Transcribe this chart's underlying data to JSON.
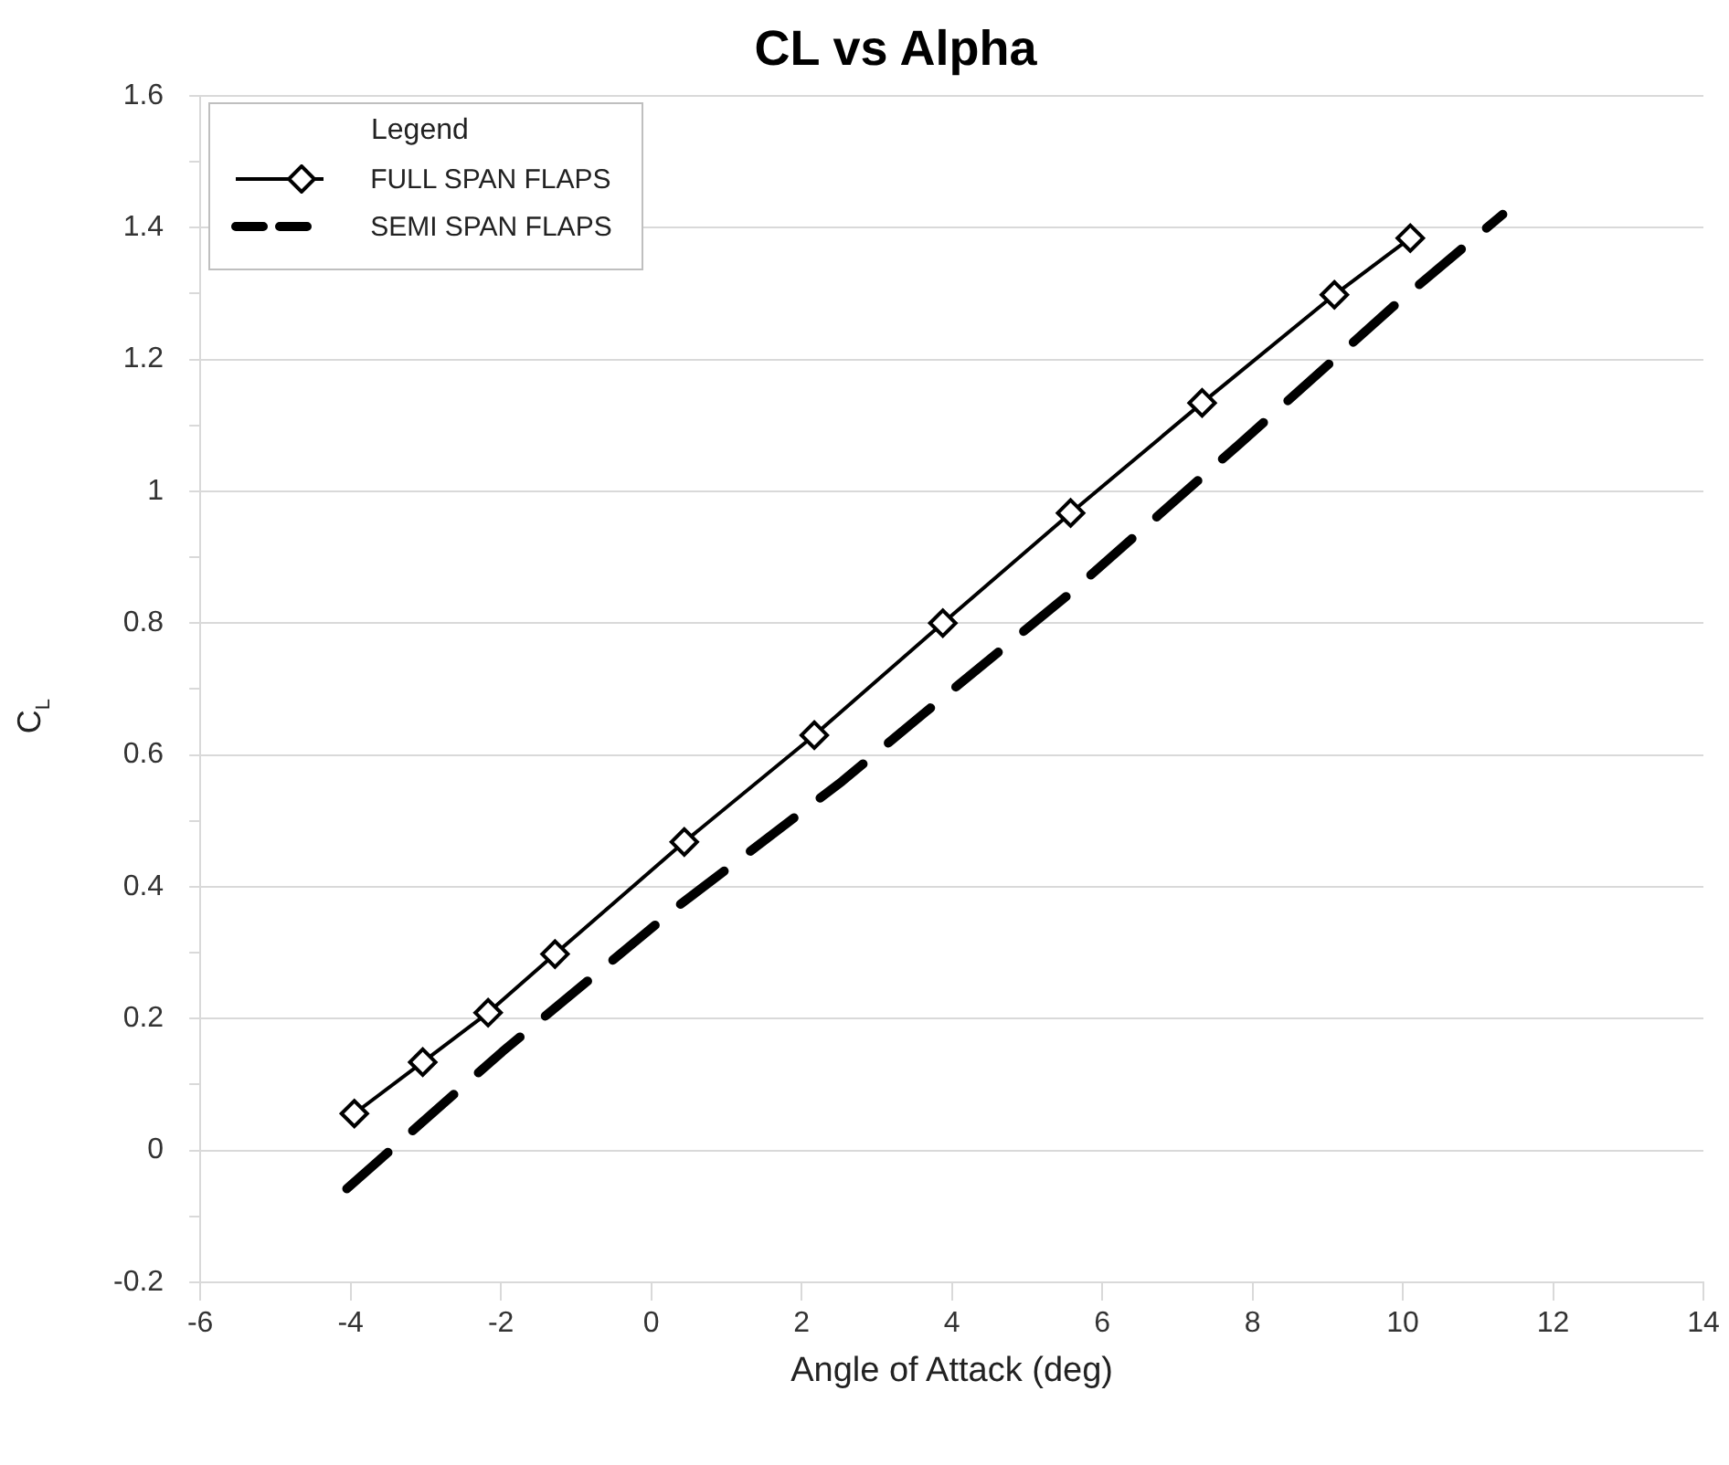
{
  "chart_data": {
    "type": "line",
    "title": "CL vs Alpha",
    "xlabel": "Angle of Attack (deg)",
    "ylabel": "C$_{L}$",
    "legend_title": "Legend",
    "xlim": [
      -6,
      14
    ],
    "xticks": [
      -6,
      -4,
      -2,
      0,
      2,
      4,
      6,
      8,
      10,
      12,
      14
    ],
    "ylim": [
      -0.2,
      1.6
    ],
    "yticks": [
      -0.2,
      {
        "value": -0.1,
        "label": null
      },
      0,
      {
        "value": 0.1,
        "label": null
      },
      0.2,
      {
        "value": 0.3,
        "label": null
      },
      0.4,
      {
        "value": 0.5,
        "label": null
      },
      0.6,
      {
        "value": 0.7,
        "label": null
      },
      0.8,
      {
        "value": 0.9,
        "label": null
      },
      1,
      {
        "value": 1.1,
        "label": null
      },
      1.2,
      {
        "value": 1.3,
        "label": null
      },
      1.4,
      {
        "value": 1.5,
        "label": null
      },
      1.6
    ],
    "grid": "y",
    "legend": "top left",
    "series": [
      {
        "name": "FULL SPAN FLAPS",
        "color": "#000000",
        "marker": "diamond",
        "line_style": "solid",
        "x": [
          -3.95,
          -3.04,
          -2.17,
          -1.28,
          0.44,
          2.17,
          3.88,
          5.58,
          7.33,
          9.09,
          10.1
        ],
        "values": [
          0.056,
          0.134,
          0.209,
          0.298,
          0.468,
          0.63,
          0.8,
          0.967,
          1.134,
          1.298,
          1.384
        ]
      },
      {
        "name": "SEMI SPAN FLAPS",
        "color": "#000000",
        "marker": "none",
        "line_style": "dashed",
        "x": [
          -4.05,
          -1.98,
          0.35,
          2.54,
          4.02,
          5.56,
          7.83,
          9.88,
          11.33
        ],
        "values": [
          -0.058,
          0.15,
          0.37,
          0.56,
          0.7,
          0.844,
          1.072,
          1.281,
          1.42
        ]
      }
    ]
  }
}
